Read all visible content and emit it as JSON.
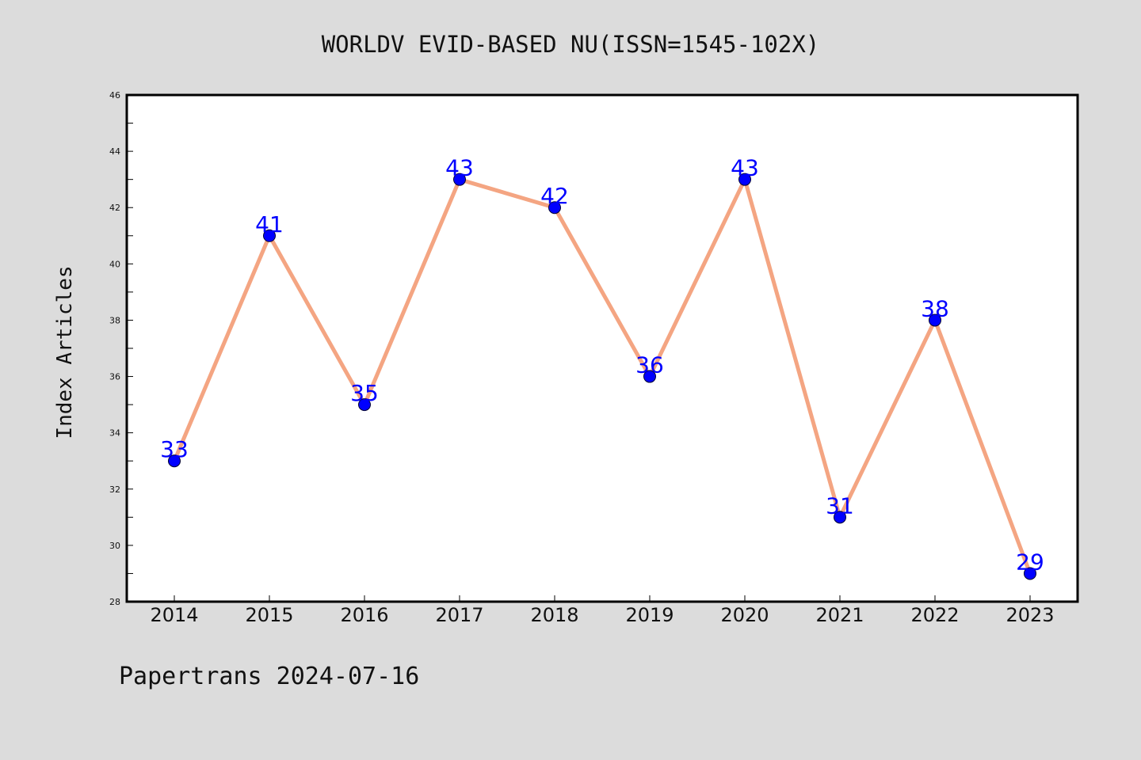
{
  "colors": {
    "background": "#dcdcdc",
    "plot_background": "#ffffff",
    "line": "#f4a582",
    "marker_fill": "#0000ff",
    "data_label": "#0000ff",
    "text": "#111111"
  },
  "footer": {
    "text": "Papertrans 2024-07-16"
  },
  "chart_data": {
    "type": "line",
    "title": "WORLDV EVID-BASED NU(ISSN=1545-102X)",
    "xlabel": "",
    "ylabel": "Index Articles",
    "categories": [
      "2014",
      "2015",
      "2016",
      "2017",
      "2018",
      "2019",
      "2020",
      "2021",
      "2022",
      "2023"
    ],
    "series": [
      {
        "values": [
          33,
          41,
          35,
          43,
          42,
          36,
          43,
          31,
          38,
          29
        ]
      }
    ],
    "ylim": [
      28,
      46
    ],
    "yticks": [
      28,
      30,
      32,
      34,
      36,
      38,
      40,
      42,
      44,
      46
    ],
    "grid": false,
    "legend": "none",
    "data_labels": true
  }
}
